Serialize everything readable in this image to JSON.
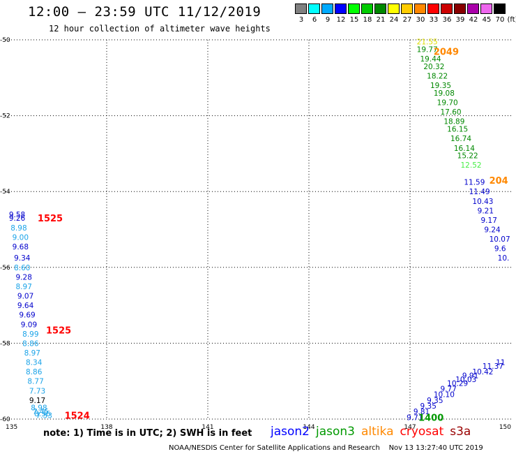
{
  "header": {
    "title": "12:00 – 23:59 UTC 11/12/2019",
    "subtitle": "12 hour collection of altimeter wave heights"
  },
  "color_scale": {
    "unit": "(ft)",
    "bins": [
      {
        "label": "3",
        "color": "#808080"
      },
      {
        "label": "6",
        "color": "#00ffff"
      },
      {
        "label": "9",
        "color": "#00aaff"
      },
      {
        "label": "12",
        "color": "#0000ff"
      },
      {
        "label": "15",
        "color": "#00ff00"
      },
      {
        "label": "18",
        "color": "#00cc00"
      },
      {
        "label": "21",
        "color": "#008800"
      },
      {
        "label": "24",
        "color": "#ffff00"
      },
      {
        "label": "27",
        "color": "#ffcc00"
      },
      {
        "label": "30",
        "color": "#ff8800"
      },
      {
        "label": "33",
        "color": "#ff0000"
      },
      {
        "label": "36",
        "color": "#cc0000"
      },
      {
        "label": "39",
        "color": "#880000"
      },
      {
        "label": "42",
        "color": "#aa00aa"
      },
      {
        "label": "45",
        "color": "#ee66ee"
      },
      {
        "label": "70",
        "color": "#000000"
      }
    ]
  },
  "footer": {
    "note": "note: 1) Time is in UTC; 2) SWH is in feet",
    "credit": "NOAA/NESDIS Center for Satellite Applications and Research    Nov 13 13:27:40 UTC 2019",
    "satellites": [
      {
        "name": "jason2",
        "color": "#0000ff"
      },
      {
        "name": "jason3",
        "color": "#009900"
      },
      {
        "name": "altika",
        "color": "#ff8800"
      },
      {
        "name": "cryosat",
        "color": "#ff0000"
      },
      {
        "name": "s3a",
        "color": "#990000"
      }
    ]
  },
  "chart_data": {
    "type": "scatter",
    "xlabel": "",
    "ylabel": "",
    "xlim": [
      135,
      150
    ],
    "ylim": [
      -60,
      -50
    ],
    "x_ticks": [
      "135",
      "138",
      "141",
      "144",
      "147",
      "150"
    ],
    "y_ticks": [
      "-50",
      "-52",
      "-54",
      "-56",
      "-58",
      "-60"
    ],
    "grid": true,
    "pass_labels": [
      {
        "text": "2049",
        "x": 147.7,
        "y": -50.3,
        "color": "#ff8800"
      },
      {
        "text": "204",
        "x": 149.35,
        "y": -53.7,
        "color": "#ff8800"
      },
      {
        "text": "1525",
        "x": 135.95,
        "y": -54.7,
        "color": "#ff0000"
      },
      {
        "text": "1525",
        "x": 136.2,
        "y": -57.65,
        "color": "#ff0000"
      },
      {
        "text": "1524",
        "x": 136.75,
        "y": -59.9,
        "color": "#ff0000"
      },
      {
        "text": "1400",
        "x": 147.25,
        "y": -59.95,
        "color": "#009900"
      }
    ],
    "series": [
      {
        "color": "#008800",
        "points": [
          {
            "x": 147.2,
            "y": -50.05,
            "v": "21.55",
            "c": "#dddd00"
          },
          {
            "x": 147.2,
            "y": -50.25,
            "v": "19.77"
          },
          {
            "x": 147.3,
            "y": -50.5,
            "v": "19.44"
          },
          {
            "x": 147.4,
            "y": -50.7,
            "v": "20.32"
          },
          {
            "x": 147.5,
            "y": -50.95,
            "v": "18.22"
          },
          {
            "x": 147.6,
            "y": -51.2,
            "v": "19.35"
          },
          {
            "x": 147.7,
            "y": -51.4,
            "v": "19.08"
          },
          {
            "x": 147.8,
            "y": -51.65,
            "v": "19.70"
          },
          {
            "x": 147.9,
            "y": -51.9,
            "v": "17.60"
          },
          {
            "x": 148.0,
            "y": -52.15,
            "v": "18.89"
          },
          {
            "x": 148.1,
            "y": -52.35,
            "v": "16.15"
          },
          {
            "x": 148.2,
            "y": -52.6,
            "v": "16.74"
          },
          {
            "x": 148.3,
            "y": -52.85,
            "v": "16.14"
          },
          {
            "x": 148.4,
            "y": -53.05,
            "v": "15.22"
          },
          {
            "x": 148.5,
            "y": -53.3,
            "v": "12.52",
            "c": "#44ee44"
          }
        ]
      },
      {
        "color": "#0000cc",
        "points": [
          {
            "x": 148.6,
            "y": -53.75,
            "v": "11.59"
          },
          {
            "x": 148.75,
            "y": -54.0,
            "v": "11.49"
          },
          {
            "x": 148.85,
            "y": -54.25,
            "v": "10.43"
          },
          {
            "x": 149.0,
            "y": -54.5,
            "v": "9.21"
          },
          {
            "x": 149.1,
            "y": -54.75,
            "v": "9.17"
          },
          {
            "x": 149.2,
            "y": -55.0,
            "v": "9.24"
          },
          {
            "x": 149.35,
            "y": -55.25,
            "v": "10.07"
          },
          {
            "x": 149.5,
            "y": -55.5,
            "v": "9.6"
          },
          {
            "x": 149.6,
            "y": -55.75,
            "v": "10."
          }
        ]
      },
      {
        "color": "#1aa3e8",
        "points": [
          {
            "x": 135.1,
            "y": -54.6,
            "v": "9.58",
            "c": "#0000cc"
          },
          {
            "x": 135.1,
            "y": -54.7,
            "v": "9.26",
            "c": "#0000cc"
          },
          {
            "x": 135.15,
            "y": -54.95,
            "v": "8.98"
          },
          {
            "x": 135.2,
            "y": -55.2,
            "v": "9.00"
          },
          {
            "x": 135.2,
            "y": -55.45,
            "v": "9.68",
            "c": "#0000cc"
          },
          {
            "x": 135.25,
            "y": -55.75,
            "v": "9.34",
            "c": "#0000cc"
          },
          {
            "x": 135.25,
            "y": -56.0,
            "v": "8.60"
          },
          {
            "x": 135.3,
            "y": -56.25,
            "v": "9.28",
            "c": "#0000cc"
          },
          {
            "x": 135.3,
            "y": -56.5,
            "v": "8.97"
          },
          {
            "x": 135.35,
            "y": -56.75,
            "v": "9.07",
            "c": "#0000cc"
          },
          {
            "x": 135.35,
            "y": -57.0,
            "v": "9.64",
            "c": "#0000cc"
          },
          {
            "x": 135.4,
            "y": -57.25,
            "v": "9.69",
            "c": "#0000cc"
          },
          {
            "x": 135.45,
            "y": -57.5,
            "v": "9.09",
            "c": "#0000cc"
          },
          {
            "x": 135.5,
            "y": -57.75,
            "v": "8.99"
          },
          {
            "x": 135.5,
            "y": -58.0,
            "v": "8.86"
          },
          {
            "x": 135.55,
            "y": -58.25,
            "v": "8.97"
          },
          {
            "x": 135.6,
            "y": -58.5,
            "v": "8.34"
          },
          {
            "x": 135.6,
            "y": -58.75,
            "v": "8.86"
          },
          {
            "x": 135.65,
            "y": -59.0,
            "v": "8.77"
          },
          {
            "x": 135.7,
            "y": -59.25,
            "v": "7.73"
          },
          {
            "x": 135.7,
            "y": -59.5,
            "v": "9.17",
            "c": "#000000"
          },
          {
            "x": 135.75,
            "y": -59.7,
            "v": "8.98"
          },
          {
            "x": 135.8,
            "y": -59.8,
            "v": "7.45"
          },
          {
            "x": 135.85,
            "y": -59.85,
            "v": "8.36"
          },
          {
            "x": 135.9,
            "y": -59.9,
            "v": "7.53"
          }
        ]
      },
      {
        "color": "#0000cc",
        "points": [
          {
            "x": 146.9,
            "y": -59.95,
            "v": "9.71"
          },
          {
            "x": 147.1,
            "y": -59.8,
            "v": "9.81"
          },
          {
            "x": 147.3,
            "y": -59.65,
            "v": "9.35"
          },
          {
            "x": 147.5,
            "y": -59.5,
            "v": "9.35"
          },
          {
            "x": 147.7,
            "y": -59.35,
            "v": "10.10"
          },
          {
            "x": 147.9,
            "y": -59.2,
            "v": "9.77"
          },
          {
            "x": 148.1,
            "y": -59.05,
            "v": "10.29"
          },
          {
            "x": 148.35,
            "y": -58.95,
            "v": "10.03"
          },
          {
            "x": 148.55,
            "y": -58.85,
            "v": "9.91"
          },
          {
            "x": 148.85,
            "y": -58.75,
            "v": "10.42"
          },
          {
            "x": 149.15,
            "y": -58.6,
            "v": "11.37"
          },
          {
            "x": 149.55,
            "y": -58.5,
            "v": "11"
          }
        ]
      }
    ]
  }
}
